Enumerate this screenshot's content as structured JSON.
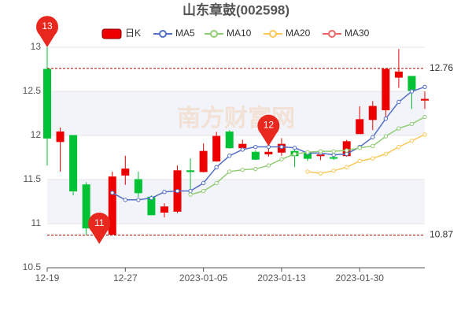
{
  "chart_data": {
    "type": "candlestick",
    "title": "山东章鼓(002598)",
    "watermark": "南方财富网",
    "categories": [
      "12-19",
      null,
      null,
      null,
      null,
      null,
      "12-27",
      null,
      null,
      null,
      null,
      null,
      "2023-01-05",
      null,
      null,
      null,
      null,
      null,
      "2023-01-13",
      null,
      null,
      null,
      null,
      null,
      "2023-01-30",
      null,
      null,
      null,
      null,
      null
    ],
    "candles": {
      "name": "日K",
      "up_color": "#ec0000",
      "down_color": "#00c234",
      "open": [
        12.75,
        11.93,
        12.0,
        11.44,
        10.93,
        10.88,
        11.55,
        11.5,
        11.3,
        11.13,
        11.14,
        11.6,
        11.59,
        11.71,
        12.04,
        11.86,
        11.81,
        11.79,
        11.81,
        11.82,
        11.8,
        11.77,
        11.75,
        11.77,
        12.02,
        12.18,
        12.29,
        12.66,
        12.67,
        12.4
      ],
      "close": [
        11.97,
        12.04,
        11.37,
        10.95,
        10.96,
        11.53,
        11.62,
        11.35,
        11.1,
        11.19,
        11.6,
        11.59,
        11.82,
        11.99,
        11.86,
        11.9,
        11.73,
        11.81,
        11.9,
        11.77,
        11.74,
        11.78,
        11.74,
        11.93,
        12.18,
        12.33,
        12.75,
        12.72,
        12.51,
        12.41
      ],
      "high": [
        13.0,
        12.09,
        12.0,
        11.47,
        11.0,
        11.59,
        11.77,
        11.59,
        11.32,
        11.23,
        11.66,
        11.74,
        11.91,
        12.04,
        12.06,
        11.95,
        11.83,
        11.85,
        11.97,
        11.87,
        11.82,
        11.8,
        11.77,
        11.95,
        12.33,
        12.39,
        12.76,
        12.98,
        12.67,
        12.5
      ],
      "low": [
        11.66,
        11.59,
        11.32,
        10.87,
        10.87,
        10.87,
        11.44,
        11.3,
        11.1,
        11.07,
        11.12,
        11.35,
        11.58,
        11.7,
        11.85,
        11.82,
        11.72,
        11.76,
        11.77,
        11.64,
        11.71,
        11.72,
        11.72,
        11.76,
        12.02,
        12.06,
        12.21,
        12.54,
        12.3,
        12.3
      ]
    },
    "series": [
      {
        "name": "MA5",
        "color": "#5470c6",
        "values": [
          null,
          null,
          null,
          null,
          null,
          11.35,
          11.27,
          11.27,
          11.29,
          11.36,
          11.37,
          11.37,
          11.46,
          11.64,
          11.77,
          11.84,
          11.87,
          11.87,
          11.87,
          11.86,
          11.8,
          11.8,
          11.78,
          11.79,
          11.87,
          11.98,
          12.19,
          12.38,
          12.5,
          12.55
        ]
      },
      {
        "name": "MA10",
        "color": "#91cc75",
        "values": [
          null,
          null,
          null,
          null,
          null,
          null,
          null,
          null,
          null,
          null,
          null,
          11.33,
          11.37,
          11.46,
          11.59,
          11.61,
          11.62,
          11.66,
          11.73,
          11.79,
          11.81,
          11.82,
          11.82,
          11.83,
          11.86,
          11.88,
          11.99,
          12.08,
          12.13,
          12.21
        ]
      },
      {
        "name": "MA20",
        "color": "#fac858",
        "values": [
          null,
          null,
          null,
          null,
          null,
          null,
          null,
          null,
          null,
          null,
          null,
          null,
          null,
          null,
          null,
          null,
          null,
          null,
          null,
          null,
          11.59,
          11.57,
          11.6,
          11.64,
          11.71,
          11.74,
          11.79,
          11.87,
          11.94,
          12.01
        ]
      },
      {
        "name": "MA30",
        "color": "#ee6666",
        "values": [
          null,
          null,
          null,
          null,
          null,
          null,
          null,
          null,
          null,
          null,
          null,
          null,
          null,
          null,
          null,
          null,
          null,
          null,
          null,
          null,
          null,
          null,
          null,
          null,
          null,
          null,
          null,
          null,
          null,
          null
        ]
      }
    ],
    "ylim": [
      10.5,
      13
    ],
    "yticks": [
      10.5,
      11,
      11.5,
      12,
      12.5,
      13
    ],
    "hlines": [
      12.76,
      10.87
    ],
    "markers": [
      {
        "label": "13",
        "index": 0,
        "price": 13
      },
      {
        "label": "12",
        "index": 17,
        "price": 11.88
      },
      {
        "label": "11",
        "index": 4,
        "price": 10.77
      }
    ],
    "marker_color": "#e8281e",
    "grid": true
  }
}
